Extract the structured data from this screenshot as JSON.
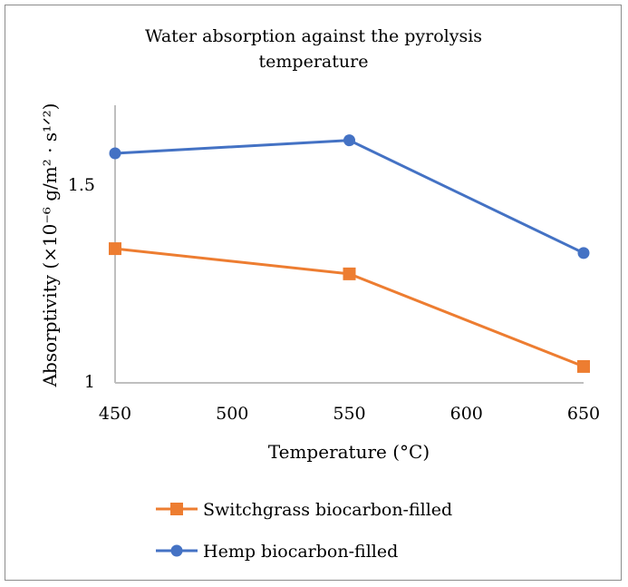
{
  "chart_data": {
    "type": "line",
    "title_lines": [
      "Water absorption against the pyrolysis",
      "temperature"
    ],
    "xlabel": "Temperature (°C)",
    "ylabel": "Absorptivity (×10⁻⁶ g/m² · s¹ᐟ²)",
    "x": [
      450,
      550,
      650
    ],
    "x_ticks": [
      "450",
      "500",
      "550",
      "600",
      "650"
    ],
    "y_ticks": [
      "1",
      "1.5"
    ],
    "xlim": [
      450,
      650
    ],
    "ylim": [
      1,
      1.7
    ],
    "grid": false,
    "legend_position": "bottom",
    "series": [
      {
        "name": "Switchgrass biocarbon-filled",
        "values": [
          1.336,
          1.272,
          1.037
        ],
        "color": "#ED7D31",
        "marker": "square"
      },
      {
        "name": "Hemp biocarbon-filled",
        "values": [
          1.578,
          1.611,
          1.325
        ],
        "color": "#4472C4",
        "marker": "circle"
      }
    ]
  }
}
